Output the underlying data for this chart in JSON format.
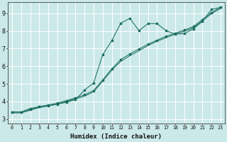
{
  "xlabel": "Humidex (Indice chaleur)",
  "bg_color": "#cce9e9",
  "grid_color": "#b8d8d8",
  "line_color": "#1a6e62",
  "xlim": [
    -0.5,
    23.5
  ],
  "ylim": [
    2.75,
    9.65
  ],
  "xticks": [
    0,
    1,
    2,
    3,
    4,
    5,
    6,
    7,
    8,
    9,
    10,
    11,
    12,
    13,
    14,
    15,
    16,
    17,
    18,
    19,
    20,
    21,
    22,
    23
  ],
  "yticks": [
    3,
    4,
    5,
    6,
    7,
    8,
    9
  ],
  "series1_y": [
    3.4,
    3.4,
    3.6,
    3.7,
    3.75,
    3.85,
    3.95,
    4.1,
    4.65,
    5.05,
    6.65,
    7.45,
    8.45,
    8.72,
    8.02,
    8.42,
    8.42,
    8.02,
    7.82,
    7.85,
    8.12,
    8.55,
    9.22,
    9.35
  ],
  "series2_y": [
    3.4,
    3.4,
    3.55,
    3.7,
    3.8,
    3.9,
    4.05,
    4.2,
    4.38,
    4.62,
    5.22,
    5.85,
    6.38,
    6.7,
    6.98,
    7.25,
    7.48,
    7.7,
    7.88,
    8.05,
    8.25,
    8.65,
    9.05,
    9.35
  ],
  "series3_y": [
    3.35,
    3.35,
    3.5,
    3.65,
    3.75,
    3.85,
    4.0,
    4.15,
    4.3,
    4.55,
    5.15,
    5.78,
    6.28,
    6.6,
    6.88,
    7.18,
    7.42,
    7.62,
    7.82,
    7.98,
    8.18,
    8.58,
    8.98,
    9.28
  ]
}
